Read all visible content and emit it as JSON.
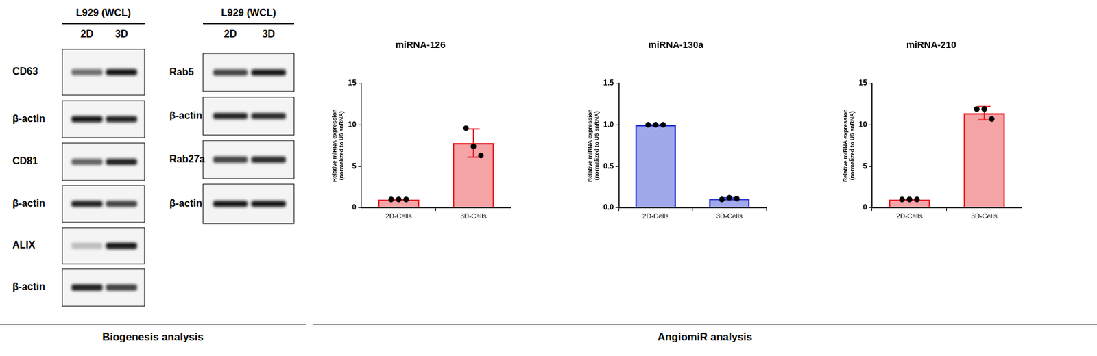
{
  "blots": [
    {
      "header": "L929 (WCL)",
      "lanes": [
        "2D",
        "3D"
      ],
      "rows": [
        {
          "label": "CD63",
          "bands": [
            0.55,
            0.95
          ]
        },
        {
          "label": "β-actin",
          "bands": [
            0.95,
            0.9
          ]
        },
        {
          "label": "CD81",
          "bands": [
            0.6,
            0.9
          ]
        },
        {
          "label": "β-actin",
          "bands": [
            0.9,
            0.75
          ]
        },
        {
          "label": "ALIX",
          "bands": [
            0.2,
            0.95
          ]
        },
        {
          "label": "β-actin",
          "bands": [
            0.9,
            0.75
          ]
        }
      ]
    },
    {
      "header": "L929 (WCL)",
      "lanes": [
        "2D",
        "3D"
      ],
      "rows": [
        {
          "label": "Rab5",
          "bands": [
            0.75,
            0.95
          ]
        },
        {
          "label": "β-actin",
          "bands": [
            0.9,
            0.85
          ]
        },
        {
          "label": "Rab27a",
          "bands": [
            0.75,
            0.85
          ]
        },
        {
          "label": "β-actin",
          "bands": [
            0.95,
            0.95
          ]
        }
      ]
    }
  ],
  "sections": [
    "Biogenesis analysis",
    "AngiomiR analysis"
  ],
  "chart_data": [
    {
      "type": "bar",
      "title": "miRNA-126",
      "y_label": [
        "Relative miRNA expression",
        "(normalized to U6 snRNA)"
      ],
      "categories": [
        "2D-Cells",
        "3D-Cells"
      ],
      "values": [
        1,
        7.8
      ],
      "errors": [
        0,
        1.7
      ],
      "points": [
        [
          1,
          1,
          1
        ],
        [
          9.6,
          7.4,
          6.3
        ]
      ],
      "color": "#e8262c",
      "ylim": [
        0,
        15
      ],
      "yticks": [
        0,
        5,
        10,
        15
      ],
      "grid": false
    },
    {
      "type": "bar",
      "title": "miRNA-130a",
      "y_label": [
        "Relative miRNA expression",
        "(normalized to U6 snRNA)"
      ],
      "categories": [
        "2D-Cells",
        "3D-Cells"
      ],
      "values": [
        1,
        0.11
      ],
      "errors": [
        0,
        0.01
      ],
      "points": [
        [
          1,
          1,
          1
        ],
        [
          0.1,
          0.12,
          0.11
        ]
      ],
      "color": "#1f2fd0",
      "ylim": [
        0,
        1.5
      ],
      "yticks": [
        {
          "value": 0,
          "label": "0.0"
        },
        0.5,
        {
          "value": 1,
          "label": "1.0"
        },
        1.5
      ],
      "grid": false
    },
    {
      "type": "bar",
      "title": "miRNA-210",
      "y_label": [
        "Relative miRNA expression",
        "(normalized to U6 snRNA)"
      ],
      "categories": [
        "2D-Cells",
        "3D-Cells"
      ],
      "values": [
        1,
        11.4
      ],
      "errors": [
        0,
        0.8
      ],
      "points": [
        [
          1,
          1,
          1
        ],
        [
          11.9,
          11.9,
          10.7
        ]
      ],
      "color": "#e8262c",
      "ylim": [
        0,
        15
      ],
      "yticks": [
        0,
        5,
        10,
        15
      ],
      "grid": false
    }
  ]
}
